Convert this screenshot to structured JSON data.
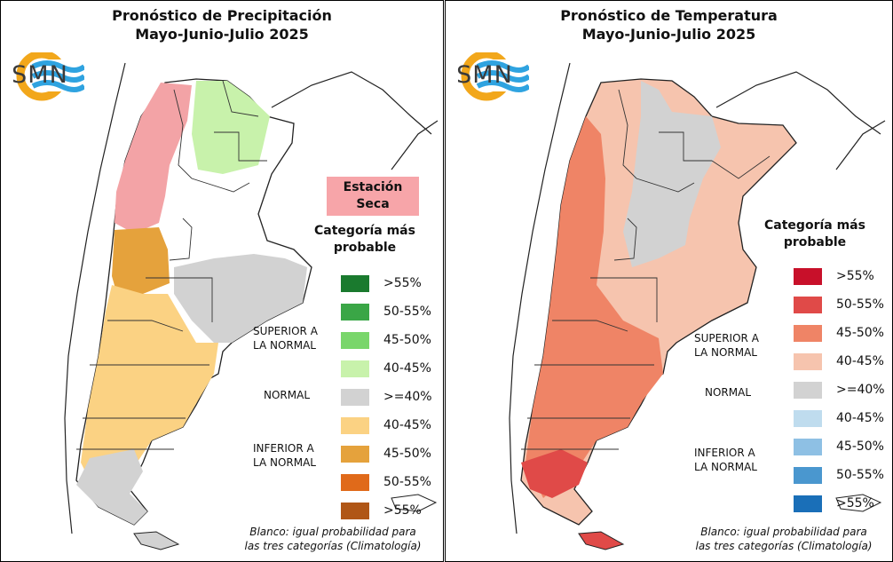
{
  "precip": {
    "title_line1": "Pronóstico de Precipitación",
    "title_line2": "Mayo-Junio-Julio 2025",
    "logo_text": "SMN",
    "dry_season_line1": "Estación",
    "dry_season_line2": "Seca",
    "legend_title_line1": "Categoría más",
    "legend_title_line2": "probable",
    "legend": [
      {
        "label": ">55%",
        "color": "#1a7a2e"
      },
      {
        "label": "50-55%",
        "color": "#3aa646"
      },
      {
        "label": "45-50%",
        "color": "#79d66b"
      },
      {
        "label": "40-45%",
        "color": "#c8f2ab"
      },
      {
        "label": ">=40%",
        "color": "#d2d2d2"
      },
      {
        "label": "40-45%",
        "color": "#fbd283"
      },
      {
        "label": "45-50%",
        "color": "#e5a23c"
      },
      {
        "label": "50-55%",
        "color": "#e06a1a"
      },
      {
        "label": ">55%",
        "color": "#b05616"
      }
    ],
    "group_superior_line1": "SUPERIOR A",
    "group_superior_line2": "LA NORMAL",
    "group_normal": "NORMAL",
    "group_inferior_line1": "INFERIOR A",
    "group_inferior_line2": "LA NORMAL",
    "footnote_line1": "Blanco: igual probabilidad para",
    "footnote_line2": "las tres categorías (Climatología)"
  },
  "temp": {
    "title_line1": "Pronóstico de Temperatura",
    "title_line2": "Mayo-Junio-Julio 2025",
    "logo_text": "SMN",
    "legend_title_line1": "Categoría más",
    "legend_title_line2": "probable",
    "legend": [
      {
        "label": ">55%",
        "color": "#c8102a"
      },
      {
        "label": "50-55%",
        "color": "#e04a48"
      },
      {
        "label": "45-50%",
        "color": "#ef8466"
      },
      {
        "label": "40-45%",
        "color": "#f6c4ae"
      },
      {
        "label": ">=40%",
        "color": "#d2d2d2"
      },
      {
        "label": "40-45%",
        "color": "#bfdcee"
      },
      {
        "label": "45-50%",
        "color": "#8ec0e4"
      },
      {
        "label": "50-55%",
        "color": "#4a97cf"
      },
      {
        "label": ">55%",
        "color": "#1a6fb8"
      }
    ],
    "group_superior_line1": "SUPERIOR A",
    "group_superior_line2": "LA NORMAL",
    "group_normal": "NORMAL",
    "group_inferior_line1": "INFERIOR A",
    "group_inferior_line2": "LA NORMAL",
    "footnote_line1": "Blanco: igual probabilidad para",
    "footnote_line2": "las tres categorías (Climatología)"
  }
}
